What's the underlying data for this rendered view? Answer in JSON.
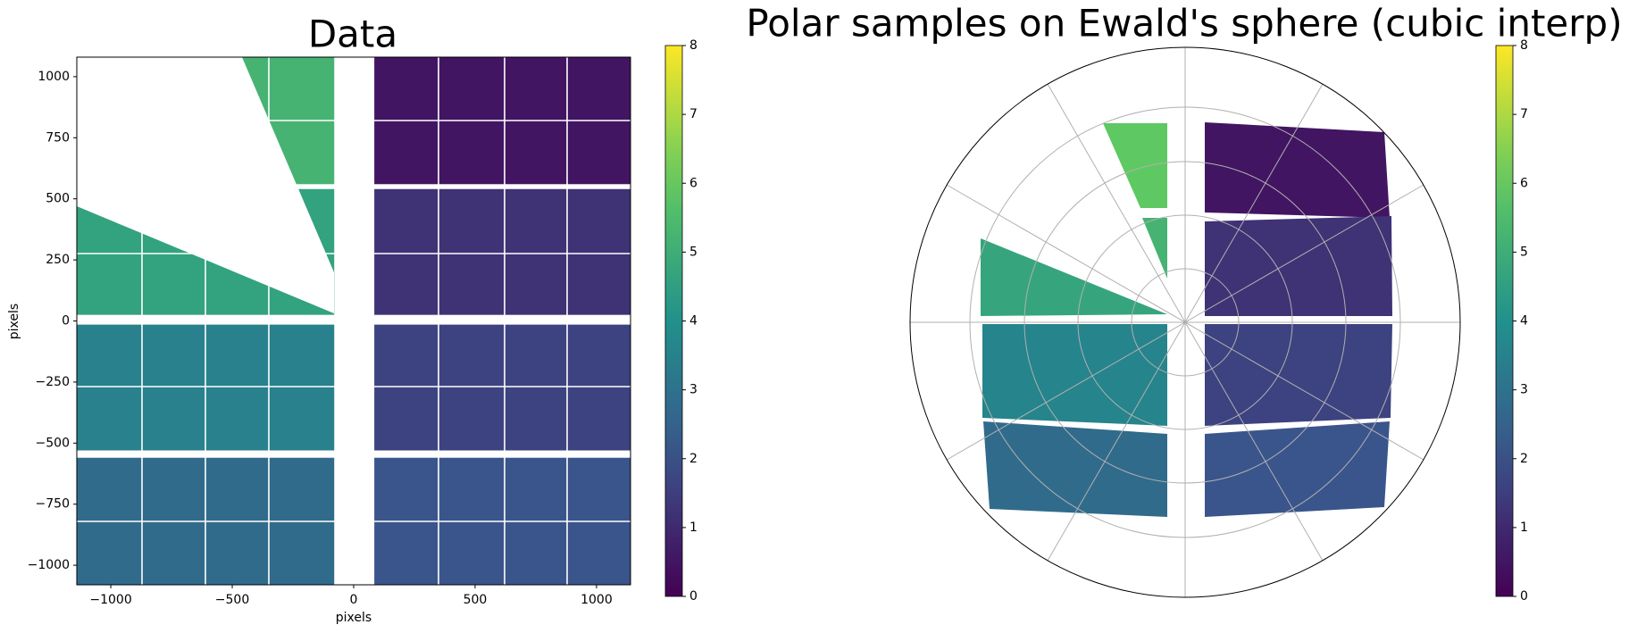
{
  "chart_data": [
    {
      "type": "image",
      "title": "Data",
      "xlabel": "pixels",
      "ylabel": "pixels",
      "xlim": [
        -1140,
        1140
      ],
      "ylim": [
        -1080,
        1080
      ],
      "xticks": [
        {
          "value": -1000,
          "label": "−1000"
        },
        {
          "value": -500,
          "label": "−500"
        },
        0,
        500,
        1000
      ],
      "yticks": [
        {
          "value": -1000,
          "label": "−1000"
        },
        {
          "value": -750,
          "label": "−750"
        },
        {
          "value": -500,
          "label": "−500"
        },
        {
          "value": -250,
          "label": "−250"
        },
        0,
        250,
        500,
        750,
        1000
      ],
      "modules": [
        {
          "x": [
            -1140,
            -80
          ],
          "y": [
            560,
            1080
          ],
          "value": 5.2
        },
        {
          "x": [
            -1140,
            -80
          ],
          "y": [
            25,
            540
          ],
          "value": 4.6
        },
        {
          "x": [
            -1140,
            -80
          ],
          "y": [
            -530,
            -15
          ],
          "value": 3.5
        },
        {
          "x": [
            -1140,
            -80
          ],
          "y": [
            -1080,
            -560
          ],
          "value": 2.8
        },
        {
          "x": [
            85,
            1140
          ],
          "y": [
            560,
            1080
          ],
          "value": 0.5
        },
        {
          "x": [
            85,
            1140
          ],
          "y": [
            25,
            540
          ],
          "value": 1.2
        },
        {
          "x": [
            85,
            1140
          ],
          "y": [
            -530,
            -15
          ],
          "value": 1.6
        },
        {
          "x": [
            85,
            1140
          ],
          "y": [
            -1080,
            -560
          ],
          "value": 2.1
        }
      ],
      "colormap": "viridis",
      "clim": [
        0,
        8
      ],
      "colorbar_ticks": [
        0,
        1,
        2,
        3,
        4,
        5,
        6,
        7,
        8
      ]
    },
    {
      "type": "polar",
      "title": "Polar samples on Ewald's sphere (cubic interp)",
      "values": [
        0.5,
        1.2,
        1.6,
        2.1,
        3.6,
        2.8,
        4.7,
        6.0,
        5.2
      ],
      "grid": true,
      "colormap": "viridis",
      "clim": [
        0,
        8
      ],
      "colorbar_ticks": [
        0,
        1,
        2,
        3,
        4,
        5,
        6,
        7,
        8
      ]
    }
  ]
}
